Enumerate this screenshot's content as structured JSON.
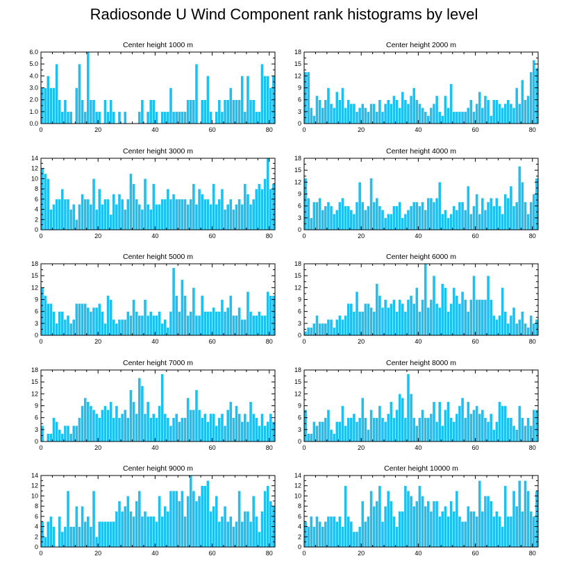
{
  "title": "Radiosonde U Wind Component rank histograms by level",
  "colors": {
    "bar": "#1ec0f0",
    "axis": "#000000",
    "bar_edge": "#ffffff"
  },
  "chart_data": [
    {
      "type": "bar",
      "title": "Center height 1000 m",
      "xlim": [
        0,
        82
      ],
      "ylim": [
        0,
        6
      ],
      "xticks": [
        0,
        20,
        40,
        60,
        80
      ],
      "yticks": [
        "0.0",
        "1.0",
        "2.0",
        "3.0",
        "4.0",
        "5.0",
        "6.0"
      ],
      "ytick_values": [
        0,
        1,
        2,
        3,
        4,
        5,
        6
      ],
      "values": [
        3,
        3,
        4,
        3,
        3,
        5,
        2,
        1,
        2,
        1,
        1,
        0,
        3,
        5,
        2,
        1,
        6,
        2,
        2,
        1,
        1,
        0,
        2,
        1,
        2,
        1,
        0,
        1,
        0,
        1,
        0,
        0,
        0,
        0,
        1,
        2,
        0,
        1,
        2,
        2,
        1,
        0,
        1,
        1,
        1,
        3,
        1,
        1,
        1,
        1,
        1,
        2,
        2,
        2,
        5,
        0,
        2,
        2,
        4,
        1,
        0,
        1,
        2,
        1,
        2,
        2,
        3,
        2,
        2,
        2,
        4,
        1,
        4,
        2,
        2,
        1,
        1,
        5,
        4,
        4,
        3,
        4
      ]
    },
    {
      "type": "bar",
      "title": "Center height 2000 m",
      "xlim": [
        0,
        82
      ],
      "ylim": [
        0,
        18
      ],
      "xticks": [
        0,
        20,
        40,
        60,
        80
      ],
      "yticks": [
        "0",
        "3",
        "6",
        "9",
        "12",
        "15",
        "18"
      ],
      "ytick_values": [
        0,
        3,
        6,
        9,
        12,
        15,
        18
      ],
      "values": [
        13,
        13,
        4,
        2,
        7,
        6,
        4,
        6,
        9,
        5,
        4,
        8,
        6,
        9,
        4,
        6,
        5,
        5,
        3,
        4,
        5,
        4,
        3,
        5,
        5,
        3,
        6,
        3,
        5,
        6,
        5,
        7,
        6,
        4,
        8,
        6,
        5,
        7,
        9,
        6,
        5,
        4,
        3,
        2,
        4,
        5,
        7,
        3,
        2,
        7,
        4,
        10,
        3,
        3,
        3,
        3,
        3,
        4,
        6,
        3,
        5,
        8,
        4,
        7,
        6,
        2,
        6,
        6,
        5,
        4,
        5,
        6,
        5,
        4,
        9,
        5,
        11,
        6,
        7,
        13,
        16,
        14
      ]
    },
    {
      "type": "bar",
      "title": "Center height 3000 m",
      "xlim": [
        0,
        82
      ],
      "ylim": [
        0,
        14
      ],
      "xticks": [
        0,
        20,
        40,
        60,
        80
      ],
      "yticks": [
        "0",
        "2",
        "4",
        "6",
        "8",
        "10",
        "12",
        "14"
      ],
      "ytick_values": [
        0,
        2,
        4,
        6,
        8,
        10,
        12,
        14
      ],
      "values": [
        12,
        11,
        10,
        4,
        5,
        6,
        6,
        8,
        6,
        6,
        4,
        5,
        2,
        5,
        7,
        6,
        6,
        5,
        10,
        4,
        8,
        5,
        6,
        6,
        3,
        7,
        5,
        7,
        6,
        4,
        6,
        11,
        9,
        6,
        5,
        4,
        10,
        5,
        4,
        9,
        5,
        5,
        6,
        6,
        8,
        6,
        7,
        6,
        6,
        6,
        6,
        5,
        6,
        9,
        5,
        8,
        7,
        6,
        6,
        5,
        9,
        5,
        6,
        8,
        4,
        5,
        6,
        4,
        5,
        6,
        5,
        9,
        7,
        5,
        6,
        8,
        9,
        8,
        10,
        14,
        8,
        9
      ]
    },
    {
      "type": "bar",
      "title": "Center height 4000 m",
      "xlim": [
        0,
        82
      ],
      "ylim": [
        0,
        18
      ],
      "xticks": [
        0,
        20,
        40,
        60,
        80
      ],
      "yticks": [
        "0",
        "3",
        "6",
        "9",
        "12",
        "15",
        "18"
      ],
      "ytick_values": [
        0,
        3,
        6,
        9,
        12,
        15,
        18
      ],
      "values": [
        13,
        8,
        3,
        7,
        7,
        8,
        5,
        6,
        7,
        6,
        4,
        5,
        7,
        8,
        6,
        6,
        5,
        4,
        7,
        12,
        7,
        5,
        6,
        13,
        7,
        8,
        6,
        5,
        3,
        4,
        4,
        6,
        6,
        7,
        3,
        4,
        5,
        6,
        7,
        7,
        6,
        7,
        5,
        8,
        8,
        7,
        8,
        12,
        4,
        5,
        3,
        4,
        6,
        5,
        7,
        7,
        5,
        11,
        4,
        6,
        9,
        4,
        8,
        5,
        7,
        8,
        6,
        8,
        6,
        4,
        9,
        8,
        11,
        6,
        7,
        16,
        12,
        7,
        4,
        7,
        9,
        13
      ]
    },
    {
      "type": "bar",
      "title": "Center height 5000 m",
      "xlim": [
        0,
        82
      ],
      "ylim": [
        0,
        18
      ],
      "xticks": [
        0,
        20,
        40,
        60,
        80
      ],
      "yticks": [
        "0",
        "3",
        "6",
        "9",
        "12",
        "15",
        "18"
      ],
      "ytick_values": [
        0,
        3,
        6,
        9,
        12,
        15,
        18
      ],
      "values": [
        12,
        10,
        8,
        8,
        6,
        3,
        6,
        6,
        4,
        5,
        3,
        4,
        8,
        8,
        8,
        8,
        7,
        6,
        7,
        7,
        8,
        6,
        3,
        10,
        9,
        4,
        3,
        4,
        4,
        4,
        6,
        5,
        9,
        6,
        5,
        5,
        9,
        5,
        6,
        5,
        5,
        6,
        3,
        4,
        2,
        6,
        17,
        10,
        6,
        14,
        10,
        5,
        6,
        12,
        5,
        5,
        10,
        6,
        6,
        6,
        7,
        6,
        6,
        9,
        6,
        7,
        10,
        5,
        5,
        7,
        4,
        4,
        11,
        6,
        5,
        5,
        6,
        5,
        5,
        11,
        10,
        10
      ]
    },
    {
      "type": "bar",
      "title": "Center height 6000 m",
      "xlim": [
        0,
        82
      ],
      "ylim": [
        0,
        18
      ],
      "xticks": [
        0,
        20,
        40,
        60,
        80
      ],
      "yticks": [
        "0",
        "3",
        "6",
        "9",
        "12",
        "15",
        "18"
      ],
      "ytick_values": [
        0,
        3,
        6,
        9,
        12,
        15,
        18
      ],
      "values": [
        1,
        2,
        2,
        3,
        5,
        3,
        3,
        3,
        4,
        4,
        2,
        4,
        5,
        4,
        5,
        8,
        8,
        6,
        11,
        6,
        6,
        8,
        8,
        7,
        6,
        13,
        10,
        7,
        9,
        7,
        8,
        9,
        6,
        9,
        8,
        6,
        9,
        10,
        8,
        12,
        6,
        9,
        18,
        7,
        9,
        15,
        8,
        7,
        13,
        12,
        6,
        8,
        12,
        10,
        8,
        11,
        9,
        6,
        9,
        15,
        9,
        9,
        9,
        9,
        15,
        9,
        5,
        4,
        5,
        12,
        6,
        3,
        5,
        7,
        3,
        4,
        6,
        3,
        2,
        5,
        3,
        4
      ]
    },
    {
      "type": "bar",
      "title": "Center height 7000 m",
      "xlim": [
        0,
        82
      ],
      "ylim": [
        0,
        18
      ],
      "xticks": [
        0,
        20,
        40,
        60,
        80
      ],
      "yticks": [
        "0",
        "3",
        "6",
        "9",
        "12",
        "15",
        "18"
      ],
      "ytick_values": [
        0,
        3,
        6,
        9,
        12,
        15,
        18
      ],
      "values": [
        4,
        0,
        2,
        2,
        6,
        5,
        3,
        2,
        4,
        4,
        2,
        4,
        4,
        6,
        9,
        11,
        10,
        9,
        8,
        7,
        6,
        8,
        9,
        8,
        10,
        6,
        9,
        6,
        7,
        8,
        6,
        13,
        10,
        7,
        16,
        14,
        7,
        10,
        6,
        7,
        6,
        9,
        17,
        7,
        6,
        4,
        6,
        7,
        5,
        6,
        6,
        11,
        8,
        8,
        13,
        8,
        6,
        7,
        5,
        7,
        7,
        4,
        6,
        7,
        4,
        8,
        10,
        6,
        9,
        7,
        5,
        7,
        5,
        10,
        7,
        6,
        4,
        7,
        4,
        5,
        7,
        5
      ]
    },
    {
      "type": "bar",
      "title": "Center height 8000 m",
      "xlim": [
        0,
        82
      ],
      "ylim": [
        0,
        18
      ],
      "xticks": [
        0,
        20,
        40,
        60,
        80
      ],
      "yticks": [
        "0",
        "3",
        "6",
        "9",
        "12",
        "15",
        "18"
      ],
      "ytick_values": [
        0,
        3,
        6,
        9,
        12,
        15,
        18
      ],
      "values": [
        8,
        2,
        2,
        5,
        4,
        5,
        5,
        6,
        8,
        3,
        2,
        5,
        5,
        9,
        4,
        6,
        6,
        7,
        5,
        6,
        11,
        6,
        3,
        8,
        6,
        6,
        9,
        6,
        5,
        7,
        10,
        6,
        8,
        12,
        11,
        6,
        17,
        12,
        6,
        4,
        6,
        8,
        6,
        6,
        7,
        10,
        5,
        10,
        4,
        8,
        10,
        6,
        5,
        7,
        9,
        11,
        6,
        10,
        7,
        8,
        9,
        7,
        8,
        6,
        5,
        7,
        3,
        5,
        10,
        9,
        9,
        6,
        6,
        4,
        3,
        9,
        6,
        4,
        6,
        4,
        8,
        8
      ]
    },
    {
      "type": "bar",
      "title": "Center height 9000 m",
      "xlim": [
        0,
        82
      ],
      "ylim": [
        0,
        14
      ],
      "xticks": [
        0,
        20,
        40,
        60,
        80
      ],
      "yticks": [
        "0",
        "2",
        "4",
        "6",
        "8",
        "10",
        "12",
        "14"
      ],
      "ytick_values": [
        0,
        2,
        4,
        6,
        8,
        10,
        12,
        14
      ],
      "values": [
        5,
        2,
        5,
        6,
        4,
        0,
        6,
        3,
        4,
        11,
        4,
        4,
        8,
        4,
        8,
        5,
        6,
        4,
        11,
        2,
        5,
        5,
        5,
        5,
        5,
        5,
        7,
        9,
        7,
        8,
        10,
        7,
        6,
        9,
        11,
        6,
        7,
        6,
        6,
        6,
        5,
        10,
        6,
        8,
        7,
        11,
        11,
        11,
        9,
        11,
        6,
        10,
        14,
        11,
        9,
        10,
        12,
        12,
        13,
        7,
        8,
        10,
        5,
        6,
        8,
        5,
        6,
        4,
        5,
        11,
        5,
        7,
        7,
        5,
        10,
        6,
        3,
        7,
        11,
        12,
        9,
        8
      ]
    },
    {
      "type": "bar",
      "title": "Center height 10000 m",
      "xlim": [
        0,
        82
      ],
      "ylim": [
        0,
        14
      ],
      "xticks": [
        0,
        20,
        40,
        60,
        80
      ],
      "yticks": [
        "0",
        "2",
        "4",
        "6",
        "8",
        "10",
        "12",
        "14"
      ],
      "ytick_values": [
        0,
        2,
        4,
        6,
        8,
        10,
        12,
        14
      ],
      "values": [
        5,
        4,
        6,
        4,
        6,
        5,
        4,
        5,
        6,
        6,
        6,
        5,
        6,
        4,
        12,
        6,
        5,
        3,
        3,
        4,
        9,
        5,
        6,
        11,
        8,
        9,
        12,
        5,
        8,
        11,
        9,
        6,
        4,
        7,
        7,
        12,
        11,
        10,
        8,
        9,
        12,
        10,
        8,
        9,
        7,
        9,
        9,
        6,
        7,
        8,
        6,
        9,
        7,
        11,
        6,
        5,
        5,
        8,
        7,
        7,
        6,
        13,
        7,
        10,
        10,
        9,
        6,
        7,
        6,
        4,
        12,
        6,
        6,
        11,
        8,
        13,
        7,
        13,
        11,
        7,
        6,
        11
      ]
    }
  ]
}
